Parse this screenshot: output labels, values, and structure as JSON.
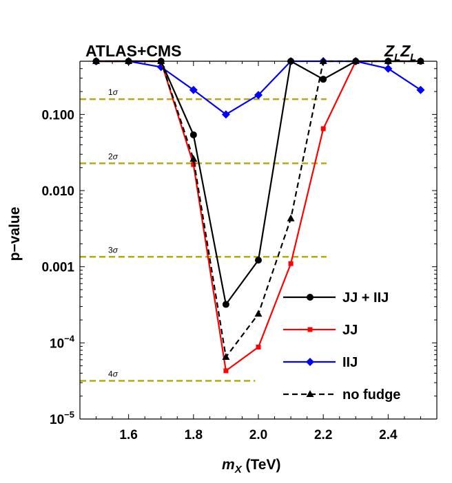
{
  "chart_data": {
    "type": "line",
    "title_left": "ATLAS+CMS",
    "title_right": {
      "base1": "Z",
      "sub1": "L",
      "base2": "Z",
      "sub2": "L"
    },
    "xlabel": {
      "var": "m",
      "sub": "X",
      "unit": " (TeV)"
    },
    "ylabel": "p−value",
    "xlim": [
      1.45,
      2.55
    ],
    "ylim": [
      1e-05,
      0.5
    ],
    "y_scale": "log",
    "x_ticks": [
      {
        "value": 1.6,
        "label": "1.6"
      },
      {
        "value": 1.8,
        "label": "1.8"
      },
      {
        "value": 2.0,
        "label": "2.0"
      },
      {
        "value": 2.2,
        "label": "2.2"
      },
      {
        "value": 2.4,
        "label": "2.4"
      }
    ],
    "y_ticks": [
      {
        "value": 0.1,
        "label": "0.100"
      },
      {
        "value": 0.01,
        "label": "0.010"
      },
      {
        "value": 0.001,
        "label": "0.001"
      },
      {
        "value": 0.0001,
        "base": "10",
        "exp": "−4"
      },
      {
        "value": 1e-05,
        "base": "10",
        "exp": "−5"
      }
    ],
    "sigma_lines": [
      {
        "label": "1σ",
        "value": 0.159,
        "x_end": 2.21
      },
      {
        "label": "2σ",
        "value": 0.0228,
        "x_end": 2.21
      },
      {
        "label": "3σ",
        "value": 0.00135,
        "x_end": 2.21
      },
      {
        "label": "4σ",
        "value": 3.17e-05,
        "x_end": 1.99
      }
    ],
    "x": [
      1.5,
      1.6,
      1.7,
      1.8,
      1.9,
      2.0,
      2.1,
      2.2,
      2.3,
      2.4,
      2.5
    ],
    "series": [
      {
        "name": "IIJ",
        "color": "#0000ff",
        "marker": "diamond",
        "dashed": false,
        "values": [
          0.5,
          0.5,
          0.42,
          0.21,
          0.1,
          0.18,
          0.5,
          0.5,
          0.5,
          0.4,
          0.21
        ]
      },
      {
        "name": "JJ",
        "color": "#ff0000",
        "marker": "square",
        "dashed": false,
        "values": [
          0.5,
          0.5,
          0.5,
          0.022,
          4.3e-05,
          8.8e-05,
          0.0011,
          0.065,
          0.5,
          0.5,
          0.5
        ]
      },
      {
        "name": "no fudge",
        "color": "#000000",
        "marker": "triangle",
        "dashed": true,
        "values": [
          0.5,
          0.5,
          0.5,
          0.026,
          6.5e-05,
          0.00024,
          0.0043,
          0.5,
          0.5,
          0.5,
          0.5
        ]
      },
      {
        "name": "JJ + IIJ",
        "color": "#000000",
        "marker": "circle",
        "dashed": false,
        "values": [
          0.5,
          0.5,
          0.5,
          0.054,
          0.00032,
          0.00122,
          0.5,
          0.29,
          0.5,
          0.5,
          0.5
        ]
      }
    ],
    "legend": {
      "placement": "bottom-right",
      "order": [
        "JJ + IIJ",
        "JJ",
        "IIJ",
        "no fudge"
      ]
    },
    "grid": false,
    "colors": {
      "sigma_line": "#b5a912",
      "axis": "#000000"
    }
  }
}
